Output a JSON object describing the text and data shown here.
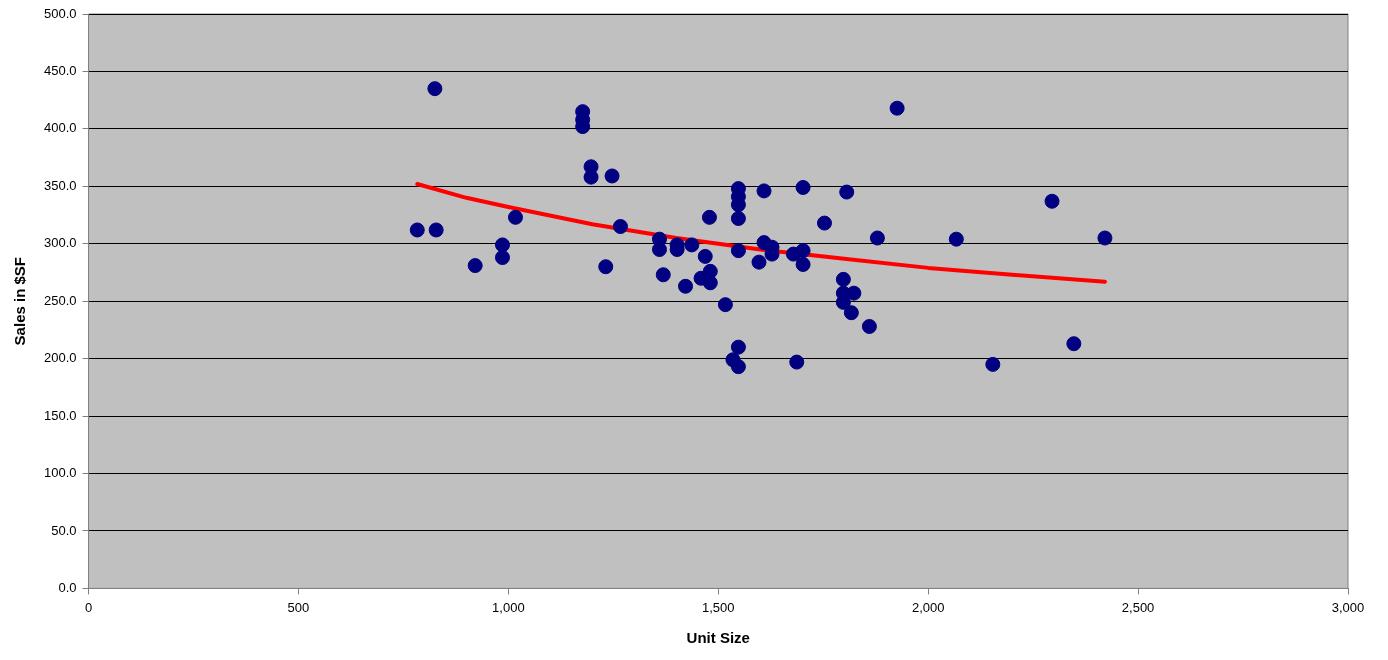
{
  "chart_data": {
    "type": "scatter",
    "xlabel": "Unit Size",
    "ylabel": "Sales in $SF",
    "marker": "circle",
    "grid": "y",
    "legend": false,
    "xlim": [
      0,
      3000
    ],
    "xticks": [
      {
        "value": 0,
        "label": "0"
      },
      {
        "value": 500,
        "label": "500"
      },
      {
        "value": 1000,
        "label": "1,000"
      },
      {
        "value": 1500,
        "label": "1,500"
      },
      {
        "value": 2000,
        "label": "2,000"
      },
      {
        "value": 2500,
        "label": "2,500"
      },
      {
        "value": 3000,
        "label": "3,000"
      }
    ],
    "ylim": [
      0,
      500
    ],
    "yticks": [
      {
        "value": 0,
        "label": "0.0"
      },
      {
        "value": 50,
        "label": "50.0"
      },
      {
        "value": 100,
        "label": "100.0"
      },
      {
        "value": 150,
        "label": "150.0"
      },
      {
        "value": 200,
        "label": "200.0"
      },
      {
        "value": 250,
        "label": "250.0"
      },
      {
        "value": 300,
        "label": "300.0"
      },
      {
        "value": 350,
        "label": "350.0"
      },
      {
        "value": 400,
        "label": "400.0"
      },
      {
        "value": 450,
        "label": "450.0"
      },
      {
        "value": 500,
        "label": "500.0"
      }
    ],
    "series": [
      {
        "color": "#000080",
        "x": [
          825,
          783,
          828,
          921,
          986,
          986,
          1017,
          1177,
          1177,
          1177,
          1197,
          1197,
          1247,
          1232,
          1267,
          1360,
          1360,
          1402,
          1402,
          1437,
          1369,
          1469,
          1422,
          1481,
          1459,
          1481,
          1517,
          1548,
          1548,
          1548,
          1548,
          1548,
          1548,
          1535,
          1548,
          1609,
          1702,
          1806,
          1479,
          1753,
          1609,
          1628,
          1628,
          1597,
          1679,
          1702,
          1702,
          1687,
          1798,
          1798,
          1798,
          1817,
          1823,
          1926,
          1879,
          2067,
          2295,
          2421,
          1860,
          2347,
          2154
        ],
        "values": [
          435,
          312,
          312,
          281,
          299,
          288,
          323,
          415,
          408,
          402,
          367,
          358,
          359,
          280,
          315,
          304,
          295,
          299,
          295,
          299,
          273,
          289,
          263,
          276,
          270,
          266,
          247,
          348,
          341,
          334,
          322,
          294,
          210,
          199,
          193,
          346,
          349,
          345,
          323,
          318,
          301,
          297,
          291,
          284,
          291,
          294,
          282,
          197,
          269,
          257,
          249,
          240,
          257,
          418,
          305,
          304,
          337,
          305,
          228,
          213,
          195
        ]
      },
      {
        "type": "line",
        "color": "#ff0000",
        "marker": "none",
        "x": [
          783,
          900,
          1000,
          1200,
          1400,
          1600,
          1800,
          2000,
          2200,
          2421
        ],
        "values": [
          352,
          340,
          332,
          317,
          305,
          295,
          287,
          279,
          273,
          267
        ]
      }
    ]
  }
}
